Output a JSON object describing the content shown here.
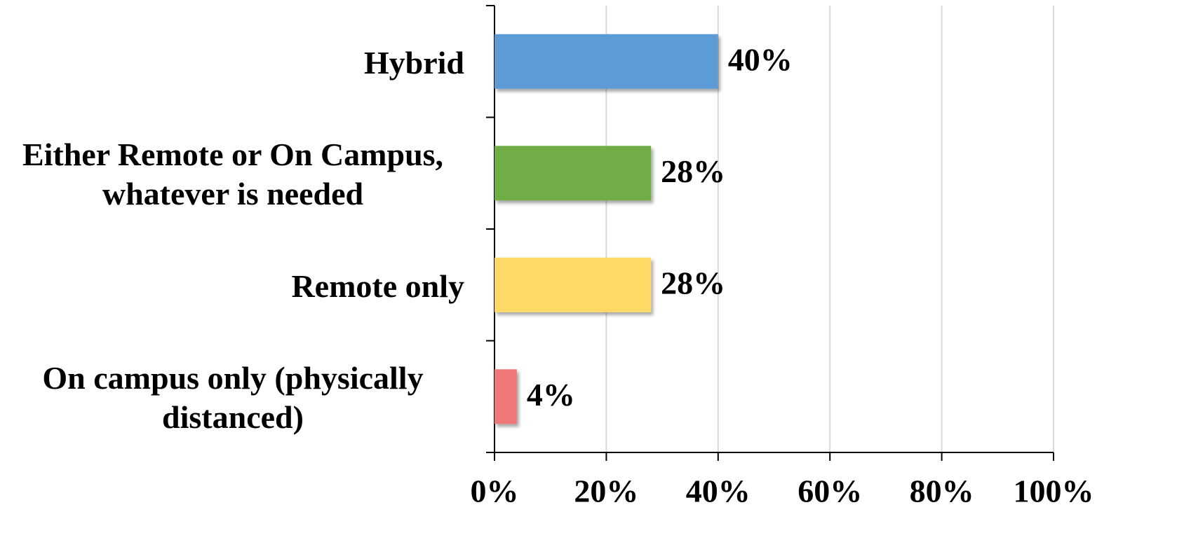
{
  "chart_data": {
    "type": "barh",
    "categories": [
      "Hybrid",
      "Either Remote or On Campus, whatever is needed",
      "Remote only",
      "On campus only (physically distanced)"
    ],
    "values": [
      40,
      28,
      28,
      4
    ],
    "value_labels": [
      "40%",
      "28%",
      "28%",
      "4%"
    ],
    "colors": [
      "#5b9bd5",
      "#70ad47",
      "#ffd966",
      "#f07878"
    ],
    "xlim": [
      0,
      100
    ],
    "xticks": [
      {
        "value": 0,
        "label": "0%"
      },
      {
        "value": 20,
        "label": "20%"
      },
      {
        "value": 40,
        "label": "40%"
      },
      {
        "value": 60,
        "label": "60%"
      },
      {
        "value": 80,
        "label": "80%"
      },
      {
        "value": 100,
        "label": "100%"
      }
    ],
    "grid": true
  }
}
